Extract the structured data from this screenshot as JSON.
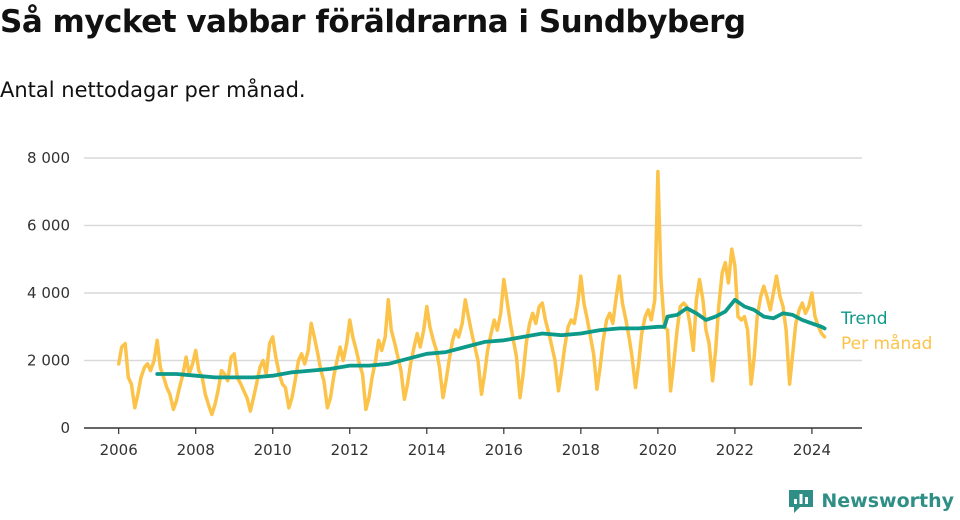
{
  "title": "Så mycket vabbar föräldrarna i Sundbyberg",
  "subtitle": "Antal nettodagar per månad.",
  "brand": "Newsworthy",
  "colors": {
    "trend": "#0d9a8a",
    "monthly": "#fcc34a",
    "grid": "#d9d9d9",
    "axis": "#333333",
    "brand": "#2f8f86"
  },
  "chart_data": {
    "type": "line",
    "x_ticks": [
      "2006",
      "2008",
      "2010",
      "2012",
      "2014",
      "2016",
      "2018",
      "2020",
      "2022",
      "2024"
    ],
    "y_ticks": [
      "0",
      "2 000",
      "4 000",
      "6 000",
      "8 000"
    ],
    "xlim": [
      2005.1,
      2025.3
    ],
    "ylim": [
      0,
      8000
    ],
    "grid": true,
    "series": [
      {
        "name": "Per månad",
        "x": [
          2006.0,
          2006.08,
          2006.17,
          2006.25,
          2006.33,
          2006.42,
          2006.5,
          2006.58,
          2006.67,
          2006.75,
          2006.83,
          2006.92,
          2007.0,
          2007.08,
          2007.17,
          2007.25,
          2007.33,
          2007.42,
          2007.5,
          2007.58,
          2007.67,
          2007.75,
          2007.83,
          2007.92,
          2008.0,
          2008.08,
          2008.17,
          2008.25,
          2008.33,
          2008.42,
          2008.5,
          2008.58,
          2008.67,
          2008.75,
          2008.83,
          2008.92,
          2009.0,
          2009.08,
          2009.17,
          2009.25,
          2009.33,
          2009.42,
          2009.5,
          2009.58,
          2009.67,
          2009.75,
          2009.83,
          2009.92,
          2010.0,
          2010.08,
          2010.17,
          2010.25,
          2010.33,
          2010.42,
          2010.5,
          2010.58,
          2010.67,
          2010.75,
          2010.83,
          2010.92,
          2011.0,
          2011.08,
          2011.17,
          2011.25,
          2011.33,
          2011.42,
          2011.5,
          2011.58,
          2011.67,
          2011.75,
          2011.83,
          2011.92,
          2012.0,
          2012.08,
          2012.17,
          2012.25,
          2012.33,
          2012.42,
          2012.5,
          2012.58,
          2012.67,
          2012.75,
          2012.83,
          2012.92,
          2013.0,
          2013.08,
          2013.17,
          2013.25,
          2013.33,
          2013.42,
          2013.5,
          2013.58,
          2013.67,
          2013.75,
          2013.83,
          2013.92,
          2014.0,
          2014.08,
          2014.17,
          2014.25,
          2014.33,
          2014.42,
          2014.5,
          2014.58,
          2014.67,
          2014.75,
          2014.83,
          2014.92,
          2015.0,
          2015.08,
          2015.17,
          2015.25,
          2015.33,
          2015.42,
          2015.5,
          2015.58,
          2015.67,
          2015.75,
          2015.83,
          2015.92,
          2016.0,
          2016.08,
          2016.17,
          2016.25,
          2016.33,
          2016.42,
          2016.5,
          2016.58,
          2016.67,
          2016.75,
          2016.83,
          2016.92,
          2017.0,
          2017.08,
          2017.17,
          2017.25,
          2017.33,
          2017.42,
          2017.5,
          2017.58,
          2017.67,
          2017.75,
          2017.83,
          2017.92,
          2018.0,
          2018.08,
          2018.17,
          2018.25,
          2018.33,
          2018.42,
          2018.5,
          2018.58,
          2018.67,
          2018.75,
          2018.83,
          2018.92,
          2019.0,
          2019.08,
          2019.17,
          2019.25,
          2019.33,
          2019.42,
          2019.5,
          2019.58,
          2019.67,
          2019.75,
          2019.83,
          2019.92,
          2020.0,
          2020.08,
          2020.17,
          2020.25,
          2020.33,
          2020.42,
          2020.5,
          2020.58,
          2020.67,
          2020.75,
          2020.83,
          2020.92,
          2021.0,
          2021.08,
          2021.17,
          2021.25,
          2021.33,
          2021.42,
          2021.5,
          2021.58,
          2021.67,
          2021.75,
          2021.83,
          2021.92,
          2022.0,
          2022.08,
          2022.17,
          2022.25,
          2022.33,
          2022.42,
          2022.5,
          2022.58,
          2022.67,
          2022.75,
          2022.83,
          2022.92,
          2023.0,
          2023.08,
          2023.17,
          2023.25,
          2023.33,
          2023.42,
          2023.5,
          2023.58,
          2023.67,
          2023.75,
          2023.83,
          2023.92,
          2024.0,
          2024.08,
          2024.17,
          2024.25,
          2024.33
        ],
        "y": [
          1900,
          2400,
          2500,
          1500,
          1300,
          600,
          1000,
          1500,
          1800,
          1900,
          1700,
          2000,
          2600,
          1800,
          1500,
          1200,
          1000,
          550,
          800,
          1200,
          1600,
          2100,
          1600,
          1900,
          2300,
          1700,
          1500,
          1000,
          700,
          400,
          700,
          1100,
          1700,
          1600,
          1400,
          2100,
          2200,
          1500,
          1300,
          1100,
          900,
          500,
          900,
          1300,
          1800,
          2000,
          1600,
          2500,
          2700,
          2100,
          1600,
          1300,
          1200,
          600,
          900,
          1400,
          2000,
          2200,
          1900,
          2300,
          3100,
          2700,
          2200,
          1700,
          1400,
          600,
          900,
          1500,
          2000,
          2400,
          2000,
          2500,
          3200,
          2700,
          2300,
          1900,
          1600,
          550,
          900,
          1500,
          2000,
          2600,
          2300,
          2700,
          3800,
          2900,
          2500,
          2100,
          1700,
          850,
          1300,
          1900,
          2400,
          2800,
          2400,
          2900,
          3600,
          3000,
          2600,
          2300,
          1800,
          900,
          1400,
          2000,
          2600,
          2900,
          2700,
          3100,
          3800,
          3300,
          2800,
          2400,
          2000,
          1000,
          1600,
          2300,
          2800,
          3200,
          2900,
          3400,
          4400,
          3800,
          3100,
          2600,
          2100,
          900,
          1600,
          2500,
          3100,
          3400,
          3100,
          3600,
          3700,
          3200,
          2800,
          2400,
          2000,
          1100,
          1700,
          2400,
          3000,
          3200,
          3100,
          3700,
          4500,
          3700,
          3200,
          2700,
          2200,
          1150,
          1800,
          2600,
          3200,
          3400,
          3100,
          3900,
          4500,
          3700,
          3200,
          2700,
          2100,
          1200,
          1900,
          2800,
          3300,
          3500,
          3200,
          3800,
          7600,
          4400,
          3000,
          2900,
          1100,
          2000,
          2900,
          3600,
          3700,
          3600,
          3100,
          2300,
          3800,
          4400,
          3800,
          2900,
          2500,
          1400,
          2300,
          3600,
          4600,
          4900,
          4300,
          5300,
          4800,
          3300,
          3200,
          3300,
          2900,
          1300,
          2100,
          3300,
          3900,
          4200,
          3900,
          3500,
          4000,
          4500,
          3900,
          3600,
          2900,
          1300,
          2200,
          3100,
          3500,
          3700,
          3400,
          3600,
          4000,
          3300,
          3000,
          2800,
          2700
        ]
      },
      {
        "name": "Trend",
        "x": [
          2007.0,
          2007.5,
          2008.0,
          2008.5,
          2009.0,
          2009.5,
          2010.0,
          2010.5,
          2011.0,
          2011.5,
          2012.0,
          2012.5,
          2013.0,
          2013.5,
          2014.0,
          2014.5,
          2015.0,
          2015.5,
          2016.0,
          2016.5,
          2017.0,
          2017.5,
          2018.0,
          2018.5,
          2019.0,
          2019.5,
          2020.0,
          2020.17,
          2020.25,
          2020.5,
          2020.75,
          2021.0,
          2021.25,
          2021.5,
          2021.75,
          2022.0,
          2022.25,
          2022.5,
          2022.75,
          2023.0,
          2023.25,
          2023.5,
          2023.75,
          2024.0,
          2024.25,
          2024.33
        ],
        "y": [
          1600,
          1600,
          1550,
          1500,
          1500,
          1500,
          1550,
          1650,
          1700,
          1750,
          1850,
          1850,
          1900,
          2050,
          2200,
          2250,
          2400,
          2550,
          2600,
          2700,
          2800,
          2750,
          2800,
          2900,
          2950,
          2950,
          3000,
          3000,
          3300,
          3350,
          3550,
          3400,
          3200,
          3300,
          3450,
          3800,
          3600,
          3500,
          3300,
          3250,
          3400,
          3350,
          3200,
          3100,
          3000,
          2950
        ]
      }
    ]
  }
}
